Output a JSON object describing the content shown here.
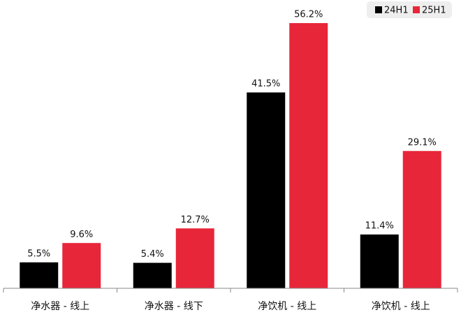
{
  "chart_data": {
    "type": "bar",
    "categories": [
      "净水器 - 线上",
      "净水器 - 线下",
      "净饮机 - 线上",
      "净饮机 - 线上"
    ],
    "series": [
      {
        "name": "24H1",
        "color": "#000000",
        "values": [
          5.5,
          5.4,
          41.5,
          11.4
        ],
        "value_labels": [
          "5.5%",
          "5.4%",
          "41.5%",
          "11.4%"
        ]
      },
      {
        "name": "25H1",
        "color": "#e8263a",
        "values": [
          9.6,
          12.7,
          56.2,
          29.1
        ],
        "value_labels": [
          "9.6%",
          "12.7%",
          "56.2%",
          "29.1%"
        ]
      }
    ],
    "legend": "top-right"
  }
}
